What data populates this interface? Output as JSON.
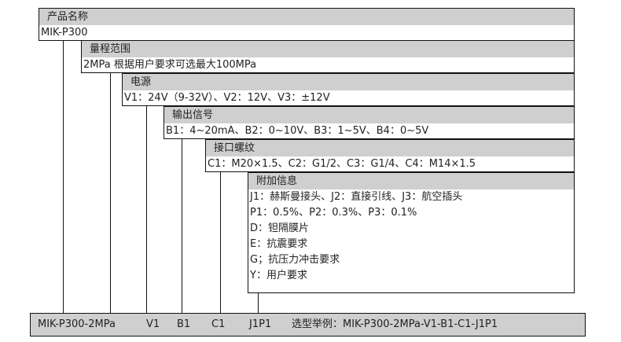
{
  "sections": [
    {
      "title": "产品名称",
      "lines": [
        "MIK-P300"
      ]
    },
    {
      "title": "量程范围",
      "lines": [
        "2MPa 根据用户要求可选最大100MPa"
      ]
    },
    {
      "title": "电源",
      "lines": [
        "V1：24V（9-32V）、V2：12V、V3：±12V"
      ]
    },
    {
      "title": "输出信号",
      "lines": [
        "B1：4~20mA、B2：0~10V、B3：1~5V、B4：0~5V"
      ]
    },
    {
      "title": "接口螺纹",
      "lines": [
        "C1：M20×1.5、C2：G1/2、C3：G1/4、C4：M14×1.5"
      ]
    },
    {
      "title": "附加信息",
      "lines": [
        "J1：赫斯曼接头、J2：直接引线、J3：航空插头",
        "P1：0.5%、P2：0.3%、P3：0.1%",
        "D：钽隔膜片",
        "E：抗震要求",
        "G；抗压力冲击要求",
        "Y：用户要求"
      ]
    }
  ],
  "example": {
    "model": "MIK-P300-2MPa",
    "power": "V1",
    "output": "B1",
    "thread": "C1",
    "extra": "J1P1",
    "label": "选型举例：MIK-P300-2MPa-V1-B1-C1-J1P1"
  }
}
